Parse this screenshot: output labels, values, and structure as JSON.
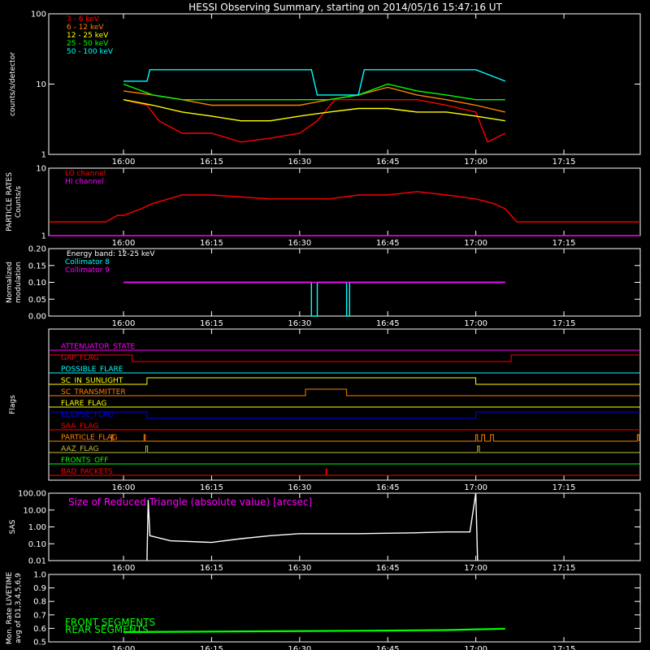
{
  "title": "HESSI Observing Summary, starting on 2014/05/16 15:47:16 UT",
  "colors": {
    "axis": "#ffffff",
    "red": "#ff0000",
    "orange": "#ff7f00",
    "yellow": "#ffff00",
    "green": "#00ff00",
    "cyan": "#00ffff",
    "magenta": "#ff00ff",
    "blue": "#0000ff",
    "olive": "#bfbf3f"
  },
  "time_axis": {
    "start_label": "15:47:16",
    "tick_labels": [
      "16:00",
      "16:15",
      "16:30",
      "16:45",
      "17:00",
      "17:15"
    ],
    "xlim_minutes": [
      -12.73,
      88.0
    ],
    "tick_minutes": [
      0,
      15,
      30,
      45,
      60,
      75
    ]
  },
  "chart_data": [
    {
      "type": "line",
      "panel": "count-rates",
      "ylabel": "counts/s/detector",
      "yscale": "log",
      "ylim": [
        1,
        100
      ],
      "ytick_labels": [
        "1",
        "10",
        "100"
      ],
      "ytick_values": [
        1,
        10,
        100
      ],
      "legend_position": "top-left",
      "series": [
        {
          "name": "3 - 6 keV",
          "color": "red",
          "points": [
            [
              0,
              6
            ],
            [
              4,
              5
            ],
            [
              6,
              3
            ],
            [
              10,
              2
            ],
            [
              15,
              2
            ],
            [
              20,
              1.5
            ],
            [
              25,
              1.7
            ],
            [
              30,
              2
            ],
            [
              33,
              3
            ],
            [
              36,
              6
            ],
            [
              40,
              6
            ],
            [
              45,
              6
            ],
            [
              50,
              6
            ],
            [
              55,
              5
            ],
            [
              60,
              4
            ],
            [
              62,
              1.5
            ],
            [
              65,
              2
            ]
          ]
        },
        {
          "name": "6 - 12 keV",
          "color": "orange",
          "points": [
            [
              0,
              8
            ],
            [
              5,
              7
            ],
            [
              10,
              6
            ],
            [
              15,
              5
            ],
            [
              20,
              5
            ],
            [
              25,
              5
            ],
            [
              30,
              5
            ],
            [
              35,
              6
            ],
            [
              40,
              7
            ],
            [
              45,
              9
            ],
            [
              50,
              7
            ],
            [
              55,
              6
            ],
            [
              60,
              5
            ],
            [
              65,
              4
            ]
          ]
        },
        {
          "name": "12 - 25 keV",
          "color": "yellow",
          "points": [
            [
              0,
              6
            ],
            [
              5,
              5
            ],
            [
              10,
              4
            ],
            [
              15,
              3.5
            ],
            [
              20,
              3
            ],
            [
              25,
              3
            ],
            [
              30,
              3.5
            ],
            [
              35,
              4
            ],
            [
              40,
              4.5
            ],
            [
              45,
              4.5
            ],
            [
              50,
              4
            ],
            [
              55,
              4
            ],
            [
              60,
              3.5
            ],
            [
              65,
              3
            ]
          ]
        },
        {
          "name": "25 - 50 keV",
          "color": "green",
          "points": [
            [
              0,
              10
            ],
            [
              5,
              7
            ],
            [
              10,
              6
            ],
            [
              15,
              6
            ],
            [
              20,
              6
            ],
            [
              25,
              6
            ],
            [
              30,
              6
            ],
            [
              35,
              6
            ],
            [
              40,
              7
            ],
            [
              45,
              10
            ],
            [
              50,
              8
            ],
            [
              55,
              7
            ],
            [
              60,
              6
            ],
            [
              65,
              6
            ]
          ]
        },
        {
          "name": "50 - 100 keV",
          "color": "cyan",
          "points": [
            [
              0,
              11
            ],
            [
              4,
              11
            ],
            [
              4.5,
              16
            ],
            [
              15,
              16
            ],
            [
              25,
              16
            ],
            [
              32,
              16
            ],
            [
              33,
              7
            ],
            [
              40,
              7
            ],
            [
              41,
              16
            ],
            [
              50,
              16
            ],
            [
              60,
              16
            ],
            [
              65,
              11
            ]
          ]
        }
      ]
    },
    {
      "type": "line",
      "panel": "particle-rates",
      "ylabel": "PARTICLE RATES",
      "ylabel2": "Counts/s",
      "yscale": "log",
      "ylim": [
        1,
        10
      ],
      "ytick_labels": [
        "1",
        "10"
      ],
      "ytick_values": [
        1,
        10
      ],
      "legend_position": "top-left",
      "series": [
        {
          "name": "LO channel",
          "color": "red",
          "points": [
            [
              -12.7,
              1.6
            ],
            [
              -3,
              1.6
            ],
            [
              -1,
              2
            ],
            [
              0,
              2
            ],
            [
              3,
              2.5
            ],
            [
              5,
              3
            ],
            [
              10,
              4
            ],
            [
              15,
              4
            ],
            [
              25,
              3.5
            ],
            [
              35,
              3.5
            ],
            [
              40,
              4
            ],
            [
              45,
              4
            ],
            [
              50,
              4.5
            ],
            [
              55,
              4
            ],
            [
              60,
              3.5
            ],
            [
              63,
              3
            ],
            [
              65,
              2.5
            ],
            [
              67,
              1.6
            ],
            [
              88,
              1.6
            ]
          ]
        },
        {
          "name": "HI channel",
          "color": "magenta",
          "points": [
            [
              -12.7,
              1
            ],
            [
              88,
              1
            ]
          ]
        }
      ]
    },
    {
      "type": "line",
      "panel": "modulation",
      "ylabel": "Normalized",
      "ylabel2": "modulation",
      "ylim": [
        0,
        0.2
      ],
      "ytick_labels": [
        "0.00",
        "0.05",
        "0.10",
        "0.15",
        "0.20"
      ],
      "ytick_values": [
        0,
        0.05,
        0.1,
        0.15,
        0.2
      ],
      "legend_title": "Energy band: 12-25 keV",
      "legend_position": "top-left",
      "series": [
        {
          "name": "Collimator 8",
          "color": "cyan",
          "points": [
            [
              0,
              0.1
            ],
            [
              32,
              0.1
            ],
            [
              32,
              0
            ],
            [
              33,
              0
            ],
            [
              33,
              0.1
            ],
            [
              38,
              0.1
            ],
            [
              38,
              0
            ],
            [
              38.5,
              0
            ],
            [
              38.5,
              0.1
            ],
            [
              65,
              0.1
            ]
          ]
        },
        {
          "name": "Collimator 9",
          "color": "magenta",
          "points": [
            [
              0,
              0.1
            ],
            [
              65,
              0.1
            ]
          ]
        }
      ]
    },
    {
      "type": "line",
      "panel": "flags",
      "ylabel": "Flags",
      "series": [
        {
          "name": "ATTENUATOR_STATE",
          "color": "magenta",
          "points": [
            [
              -12.7,
              0
            ],
            [
              88,
              0
            ]
          ]
        },
        {
          "name": "GAP_FLAG",
          "color": "red",
          "points": [
            [
              -12.7,
              1
            ],
            [
              1.5,
              1
            ],
            [
              1.5,
              0
            ],
            [
              66,
              0
            ],
            [
              66,
              1
            ],
            [
              88,
              1
            ]
          ]
        },
        {
          "name": "POSSIBLE_FLARE",
          "color": "cyan",
          "points": [
            [
              -12.7,
              0
            ],
            [
              88,
              0
            ]
          ]
        },
        {
          "name": "SC_IN_SUNLIGHT",
          "color": "yellow",
          "points": [
            [
              -12.7,
              0
            ],
            [
              4,
              0
            ],
            [
              4,
              1
            ],
            [
              60,
              1
            ],
            [
              60,
              0
            ],
            [
              88,
              0
            ]
          ]
        },
        {
          "name": "SC_TRANSMITTER",
          "color": "orange",
          "points": [
            [
              -12.7,
              0
            ],
            [
              31,
              0
            ],
            [
              31,
              1
            ],
            [
              38,
              1
            ],
            [
              38,
              0
            ],
            [
              88,
              0
            ]
          ]
        },
        {
          "name": "FLARE_FLAG",
          "color": "yellow",
          "points": [
            [
              -12.7,
              0
            ],
            [
              88,
              0
            ]
          ]
        },
        {
          "name": "ECLIPSE_FLAG",
          "color": "blue",
          "points": [
            [
              -12.7,
              1
            ],
            [
              4,
              1
            ],
            [
              4,
              0
            ],
            [
              60,
              0
            ],
            [
              60,
              1
            ],
            [
              88,
              1
            ]
          ]
        },
        {
          "name": "SAA_FLAG",
          "color": "red",
          "points": [
            [
              -12.7,
              0
            ],
            [
              88,
              0
            ]
          ]
        },
        {
          "name": "PARTICLE_FLAG",
          "color": "orange",
          "points": [
            [
              -12.7,
              0
            ],
            [
              -2,
              0
            ],
            [
              -2,
              1
            ],
            [
              -1.8,
              1
            ],
            [
              -1.8,
              0
            ],
            [
              3.5,
              0
            ],
            [
              3.5,
              1
            ],
            [
              3.7,
              1
            ],
            [
              3.7,
              0
            ],
            [
              60,
              0
            ],
            [
              60,
              1
            ],
            [
              60.3,
              1
            ],
            [
              60.3,
              0
            ],
            [
              61,
              0
            ],
            [
              61,
              1
            ],
            [
              61.5,
              1
            ],
            [
              61.5,
              0
            ],
            [
              62.5,
              0
            ],
            [
              62.5,
              1
            ],
            [
              63,
              1
            ],
            [
              63,
              0
            ],
            [
              87.5,
              0
            ],
            [
              87.5,
              1
            ],
            [
              87.8,
              1
            ],
            [
              87.8,
              0
            ]
          ]
        },
        {
          "name": "AAZ_FLAG",
          "color": "olive",
          "points": [
            [
              -12.7,
              0
            ],
            [
              3.8,
              0
            ],
            [
              3.8,
              1
            ],
            [
              4.1,
              1
            ],
            [
              4.1,
              0
            ],
            [
              60.3,
              0
            ],
            [
              60.3,
              1
            ],
            [
              60.6,
              1
            ],
            [
              60.6,
              0
            ],
            [
              88,
              0
            ]
          ]
        },
        {
          "name": "FRONTS_OFF",
          "color": "green",
          "points": [
            [
              -12.7,
              0
            ],
            [
              88,
              0
            ]
          ]
        },
        {
          "name": "BAD_PACKETS",
          "color": "red",
          "points": [
            [
              -12.7,
              0
            ],
            [
              34.5,
              0
            ],
            [
              34.5,
              1
            ],
            [
              34.6,
              1
            ],
            [
              34.6,
              0
            ],
            [
              88,
              0
            ]
          ]
        }
      ]
    },
    {
      "type": "line",
      "panel": "sas",
      "ylabel": "SAS",
      "yscale": "log",
      "ylim": [
        0.01,
        100
      ],
      "ytick_labels": [
        "0.01",
        "0.10",
        "1.00",
        "10.00",
        "100.00"
      ],
      "ytick_values": [
        0.01,
        0.1,
        1,
        10,
        100
      ],
      "annotation": "Size of Reduced Triangle (absolute value) [arcsec]",
      "series": [
        {
          "name": "",
          "color": "axis",
          "points": [
            [
              4,
              0.01
            ],
            [
              4.2,
              40
            ],
            [
              4.5,
              0.3
            ],
            [
              8,
              0.15
            ],
            [
              15,
              0.12
            ],
            [
              20,
              0.2
            ],
            [
              25,
              0.3
            ],
            [
              30,
              0.4
            ],
            [
              40,
              0.4
            ],
            [
              50,
              0.45
            ],
            [
              55,
              0.5
            ],
            [
              59,
              0.5
            ],
            [
              60,
              100
            ],
            [
              60.3,
              0.01
            ]
          ]
        }
      ]
    },
    {
      "type": "line",
      "panel": "livetime",
      "ylabel": "Mon. Rate LIVETIME",
      "ylabel2": "avg of D1,3,4,5,6,9",
      "ylim": [
        0.5,
        1.0
      ],
      "ytick_labels": [
        "0.5",
        "0.6",
        "0.7",
        "0.8",
        "0.9",
        "1.0"
      ],
      "ytick_values": [
        0.5,
        0.6,
        0.7,
        0.8,
        0.9,
        1.0
      ],
      "legend_position": "bottom-left",
      "series": [
        {
          "name": "FRONT SEGMENTS",
          "color": "green",
          "points": [
            [
              0,
              0.575
            ],
            [
              20,
              0.58
            ],
            [
              40,
              0.585
            ],
            [
              55,
              0.59
            ],
            [
              60,
              0.595
            ],
            [
              65,
              0.6
            ]
          ]
        },
        {
          "name": "REAR SEGMENTS",
          "color": "green",
          "points": [
            [
              0,
              0.57
            ],
            [
              20,
              0.575
            ],
            [
              40,
              0.58
            ],
            [
              55,
              0.585
            ],
            [
              60,
              0.59
            ],
            [
              65,
              0.595
            ]
          ]
        }
      ]
    }
  ]
}
